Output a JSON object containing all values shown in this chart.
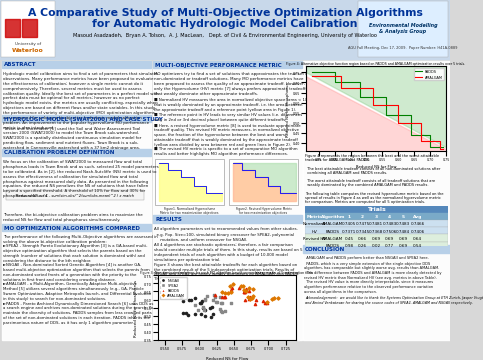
{
  "title_line1": "A Comparative Study of Multi-Objective Optimization Algorithms",
  "title_line2": "for Automatic Hydrologic Model Calibration",
  "authors": "Masoud Asadzadeh,  Bryan A. Tolson,  A. J. MacLean,   Dept. of Civil & Environmental Engineering, University of Waterloo",
  "conference": "AGU Fall Meeting, Dec 17, 2009.  Paper Number: H41A-0889",
  "abstract_title": "ABSTRACT",
  "abstract_body": "Hydrologic model calibration aims to find a set of parameters that simulates\nobservations. Many performance metrics have been proposed to evaluate\nthe effectiveness of calibration; however a single metric cannot do it\ncomprehensively. Therefore, several metrics must be used to assess\ncalibration quality. Ideally the best set of parameters in a perfect model with\nperfect data must be optimal for all metrics; however as no perfect\nhydrologic model exists, the metrics are usually conflicting, especially when\nobjectives are based on different flows and/or state variables. In this study,\nthe performance of variety of multi-objective (MO) optimization algorithms\nare compared for solving a bi-objective hydrologic model calibration\nproblem. An improvement to the popular hypervolume MO performance\nmetric is also introduced.",
  "hydro_title": "HYDROLOGIC MODEL (SWAT2000) AND CASE STUDY",
  "hydro_body": "Tolson and Shoemaker [1] used the Soil and Water Assessment Tool\nversion 2000 (SWAT2000) to model the Town Brook sub-watershed.\nSWAT2000 is a spatially distributed continuous simulation model for\npredicting flow, sediment and nutrient fluxes. Town Brook is a sub-\nwatershed in Cannonsville watershed with a 37 km2 drainage area.",
  "calib_title": "CALIBRATION PROBLEM DEFINITION",
  "calib_body": "We focus on the calibration of SWAT2000 to measured flow and total\nphosphorus loads in Town Brook and as such, selected 25 model parameters\nto be calibrated. As in [2], the reduced Nash-Sutcliffe (NS) metric is used to\nassess the effectiveness of calibration for simulated flow and total\nphosphorus against measured daily data. As presented in the following\nequation, the reduced NS penalizes the NS of solutions that have fallen\nbeyond a specified threshold. A threshold of 10% for flow and 30% for\nphosphorus was used.",
  "calib_conclusion": "Therefore, the bi-objective calibration problem aims to maximize the\nreduced NS for flow and total phosphorus simultaneously.",
  "mo_title": "MO OPTIMIZATION ALGORITHMS COMPARED",
  "mo_body": "The performance of the following Multi-Objective algorithms are assessed in\nsolving the above bi-objective calibration problem:",
  "mo_spea2": "SPEA2 - Strength Pareto Evolutionary Algorithm [3] is a GA-based multi-\nobjective optimization algorithm that selects the parents based on the\nstrength (number of solutions that each solution is dominated with) and\nconsidering the distance to the kth neighbor.",
  "mo_nsgaii": "NSGAII - Non-dominated Sorted Genetic Algorithm [4] is another GA-\nbased multi-objective optimization algorithm that selects the parents from\nnon-dominated sorted fronts of a generation with the priority to the\nsolutions in first front and considering crowding distance.",
  "mo_amalgam": "AMALGAM - a Multi-Algorithm, Genetically Adaptive Multi-objective\nMethod [5] utilizes several algorithms simultaneously (e.g., GA, Particle\nSwarm Optimization, Adaptive Metropolis launch, and Differential Evolution\nin this study) to search for non-dominated solutions.",
  "mo_padds": "PADDS - Pareto Archived Dynamically Dimensioned Search [6] uses DDS as\na search engine and archives non-dominated solutions during the search. To\nmaintain the diversity of solutions, PADDS samples from less crowded parts\nof the set of non-dominated solutions in each iteration. PADDS inherits the\nparsimonious nature of DDS, as it has only 1 algorithm parameter.",
  "mometric_title": "MULTI-OBJECTIVE PERFORMANCE METRIC",
  "mometric_body": "MO optimizers try to find a set of solutions that approximates the true set of\nnon-dominated or tradeoff solutions. Many MO performance metrics have\nbeen proposed to assess the quality of an approximate tradeoff. However,\nonly the Hypervolume (HV) metric [7] always prefers approximate tradeoffs\nthat weakly dominate other approximate tradeoffs.",
  "mometric_hv1": "Normalized HV measures the area in normalized objective space (area < 1)\nthat is weakly dominated by an approximate tradeoff, i.e. the area between\nthe approximate tradeoff and a reference point (yellow area in Figure 1).",
  "mometric_hv2": "The reference point in HV leads to very similar HV values (i.e. differences\nonly in 2nd or 3rd decimal place) between quite different tradeoffs.",
  "mometric_hv3": "Here, a revised hypervolume metric [8] is used to evaluate approximate\ntradeoff quality. This revised HV metric measures, in normalized objective\nspace, the fraction of the hypervolume between the best and worst\nattainable tradeoff that is weakly dominated by the approximate tradeoff\n(yellow area divided by area between red and green lines in Figure 2).",
  "mometric_hv4": "The revised HV metric is specific to a set of comparative MO algorithm\nresults and better highlights MO algorithm performance differences.",
  "results_title": "RESULTS",
  "results_1": "All algorithm parameters set to recommended values from other studies.",
  "results_1b": "  e.g. Pop. Size=100, simulated binary crossover for SPEA2, polynomial\n     mutation, and uniform crossover for NSGAII.",
  "results_2": "All 4 algorithms are stochastic optimizers; therefore, a fair comparison\nshould consider multiple trials of them. In this study, results are based on 5\nindependent trials of each algorithm with a budget of 10,000 model\nsimulations per optimization trial.",
  "results_3": "Figure 3 shows the best attainable tradeoffs for each algorithm based on\nthe combined result of the 5 independent optimization trials. Results of\nNSGAII and SPEA2 are nearly weakly dominated by AMALGAM and PADDS.\nTherefore, results of AMALGAM and PADDS are more closely compared.",
  "conclusion_title": "CONCLUSION",
  "conclusion_1": "AMALGAM and PADDS perform better than NSGAII and SPEA2 here.",
  "conclusion_2": "PADDS, which is a very simple extension of the single objective DDS\nalgorithm, has comparable but slightly worse avg. results than AMALGAM.",
  "conclusion_3": "The difference between PADDS and AMALGAM is more clearly detected by\nrevised HV metric than Normalized HV (see avg. metrics in above Table).",
  "conclusion_4": "The revised HV value is more directly interpretable, since it measures\nalgorithm performance relative to the observed performance variation\nacross all algorithms in the comparison.",
  "table_headers": [
    "Metric",
    "Algorithm",
    "1",
    "2",
    "3",
    "4",
    "5",
    "Avg"
  ],
  "table_rows": [
    [
      "Normalized",
      "AMALGAM",
      "0.7405",
      "0.7475",
      "0.7481",
      "0.7483",
      "0.7483",
      "0.7466"
    ],
    [
      "HV",
      "PADDS",
      "0.7371",
      "0.7345",
      "0.7368",
      "0.7506",
      "0.7484",
      "0.7406"
    ],
    [
      "Revised HV",
      "AMALGAM",
      "0.45",
      "0.66",
      "0.69",
      "0.69",
      "0.69",
      "0.64"
    ],
    [
      "",
      "PADDS",
      "0.98",
      "0.26",
      "0.02",
      "0.77",
      "0.69",
      "0.54"
    ]
  ],
  "fig1_xlabel": "Reduced NS for Flow",
  "fig1_ylabel": "Reduced NS for Phosphorus",
  "fig1_title": "Figure 4: Alternative objective function region based on PADDS and AMALGAM optimization results over 5 trials.",
  "fig1_xlim": [
    0.31,
    0.75
  ],
  "fig1_ylim": [
    0.36,
    0.78
  ],
  "fig3_xlabel": "Reduced NS for Flow",
  "fig3_ylabel": "Reduced NS for Phosphorus",
  "fig3_title": "Figure 3: Non-dominated solutions for each MO algorithm based on combining results of 5 optimization trials",
  "fig3_xlim": [
    0.54,
    0.74
  ],
  "fig3_ylim": [
    0.35,
    0.75
  ],
  "fig3_legend": [
    "NSGAII",
    "SPEA2",
    "PADDS",
    "AMALGAM"
  ],
  "fig12_title1": "Figure1. Normalized Hypervolume\nMetric for two maximization objectives",
  "fig12_title2": "Figure2. Revised Hypervolume Metric\nfor two maximization objectives"
}
